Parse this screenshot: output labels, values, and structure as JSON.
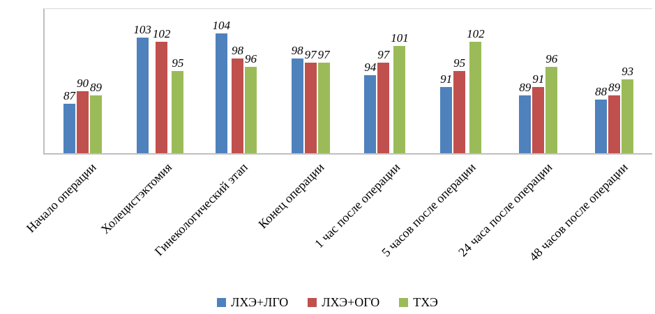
{
  "chart_data": {
    "type": "bar",
    "title": "",
    "xlabel": "",
    "ylabel": "",
    "ylim": [
      75,
      110
    ],
    "grid": false,
    "legend_position": "bottom",
    "categories": [
      "Начало операции",
      "Холецистэктомия",
      "Гинекологический этап",
      "Конец операции",
      "1 час после операции",
      "5 часов после операции",
      "24 часа после операции",
      "48 часов после операции"
    ],
    "series": [
      {
        "name": "ЛХЭ+ЛГО",
        "color": "#4F81BD",
        "values": [
          87,
          103,
          104,
          98,
          94,
          91,
          89,
          88
        ]
      },
      {
        "name": "ЛХЭ+ОГО",
        "color": "#C0504D",
        "values": [
          90,
          102,
          98,
          97,
          97,
          95,
          91,
          89
        ]
      },
      {
        "name": "ТХЭ",
        "color": "#9BBB59",
        "values": [
          89,
          95,
          96,
          97,
          101,
          102,
          96,
          93
        ]
      }
    ]
  },
  "axis_color": "#bfbfbf"
}
